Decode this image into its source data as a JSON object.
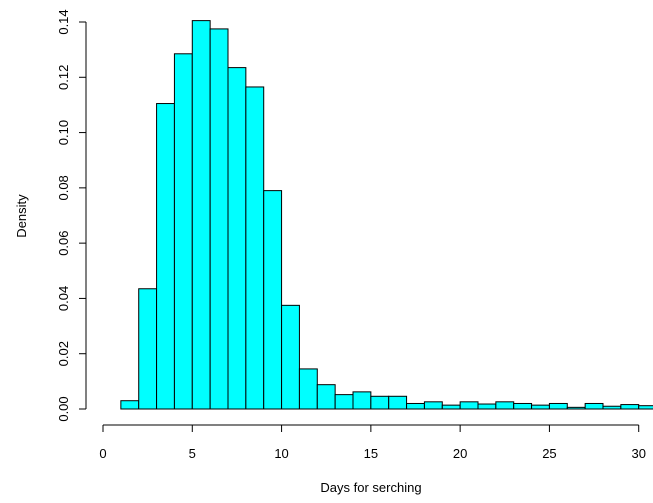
{
  "chart_data": {
    "type": "bar",
    "histogram": true,
    "xlabel": "Days for serching",
    "ylabel": "Density",
    "xlim": [
      0,
      30.8
    ],
    "ylim": [
      0,
      0.14
    ],
    "x_ticks": [
      "0",
      "5",
      "10",
      "15",
      "20",
      "25",
      "30"
    ],
    "y_ticks": [
      "0.00",
      "0.02",
      "0.04",
      "0.06",
      "0.08",
      "0.10",
      "0.12",
      "0.14"
    ],
    "bins": [
      {
        "start": 1,
        "end": 2,
        "value": 0.003
      },
      {
        "start": 2,
        "end": 3,
        "value": 0.0435
      },
      {
        "start": 3,
        "end": 4,
        "value": 0.1105
      },
      {
        "start": 4,
        "end": 5,
        "value": 0.1285
      },
      {
        "start": 5,
        "end": 6,
        "value": 0.1405
      },
      {
        "start": 6,
        "end": 7,
        "value": 0.1375
      },
      {
        "start": 7,
        "end": 8,
        "value": 0.1235
      },
      {
        "start": 8,
        "end": 9,
        "value": 0.1165
      },
      {
        "start": 9,
        "end": 10,
        "value": 0.079
      },
      {
        "start": 10,
        "end": 11,
        "value": 0.0375
      },
      {
        "start": 11,
        "end": 12,
        "value": 0.0145
      },
      {
        "start": 12,
        "end": 13,
        "value": 0.0088
      },
      {
        "start": 13,
        "end": 14,
        "value": 0.0052
      },
      {
        "start": 14,
        "end": 15,
        "value": 0.0062
      },
      {
        "start": 15,
        "end": 16,
        "value": 0.0046
      },
      {
        "start": 16,
        "end": 17,
        "value": 0.0046
      },
      {
        "start": 17,
        "end": 18,
        "value": 0.002
      },
      {
        "start": 18,
        "end": 19,
        "value": 0.0026
      },
      {
        "start": 19,
        "end": 20,
        "value": 0.0014
      },
      {
        "start": 20,
        "end": 21,
        "value": 0.0026
      },
      {
        "start": 21,
        "end": 22,
        "value": 0.0018
      },
      {
        "start": 22,
        "end": 23,
        "value": 0.0026
      },
      {
        "start": 23,
        "end": 24,
        "value": 0.002
      },
      {
        "start": 24,
        "end": 25,
        "value": 0.0014
      },
      {
        "start": 25,
        "end": 26,
        "value": 0.002
      },
      {
        "start": 26,
        "end": 27,
        "value": 0.0006
      },
      {
        "start": 27,
        "end": 28,
        "value": 0.002
      },
      {
        "start": 28,
        "end": 29,
        "value": 0.001
      },
      {
        "start": 29,
        "end": 30,
        "value": 0.0016
      },
      {
        "start": 30,
        "end": 31,
        "value": 0.0012
      }
    ],
    "bar_color": "#00ffff",
    "edge_color": "#000000",
    "grid": false,
    "legend": "none"
  }
}
